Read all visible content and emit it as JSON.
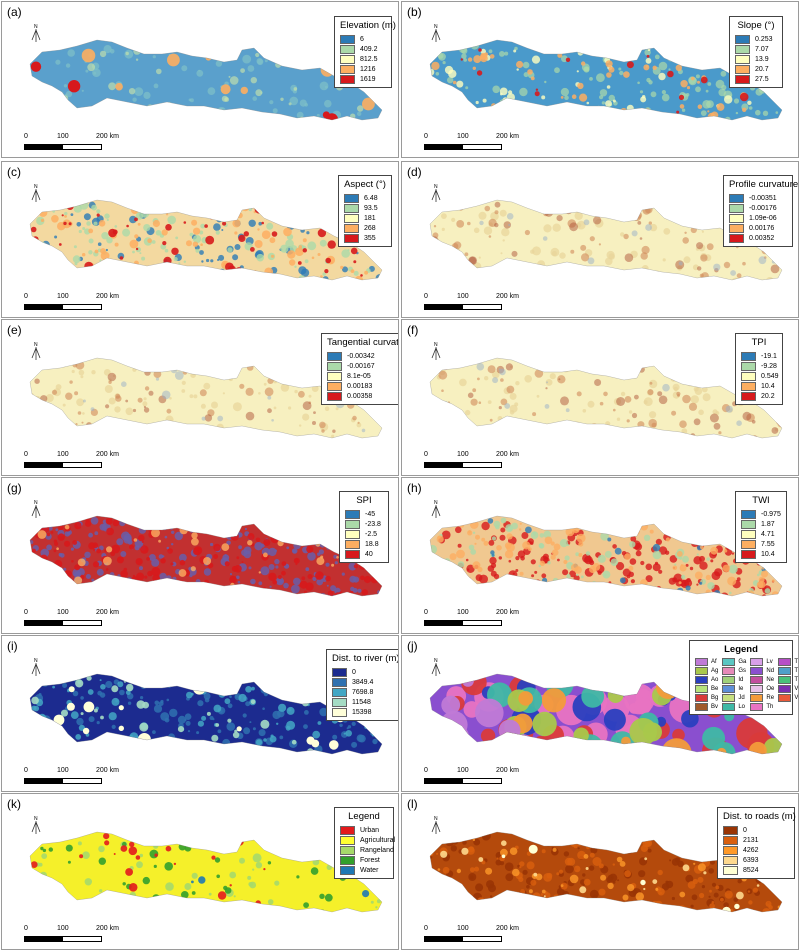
{
  "figure": {
    "panels": [
      {
        "id": "a",
        "label": "(a)",
        "legend_title": "Elevation (m)",
        "palette": "elevation",
        "items": [
          {
            "label": "6",
            "color": "#2c7bb6"
          },
          {
            "label": "409.2",
            "color": "#abd9a9"
          },
          {
            "label": "812.5",
            "color": "#ffffbf"
          },
          {
            "label": "1216",
            "color": "#fdae61"
          },
          {
            "label": "1619",
            "color": "#d7191c"
          }
        ]
      },
      {
        "id": "b",
        "label": "(b)",
        "legend_title": "Slope (°)",
        "palette": "slope",
        "items": [
          {
            "label": "0.253",
            "color": "#2c7bb6"
          },
          {
            "label": "7.07",
            "color": "#abd9a9"
          },
          {
            "label": "13.9",
            "color": "#ffffbf"
          },
          {
            "label": "20.7",
            "color": "#fdae61"
          },
          {
            "label": "27.5",
            "color": "#d7191c"
          }
        ]
      },
      {
        "id": "c",
        "label": "(c)",
        "legend_title": "Aspect (°)",
        "palette": "aspect",
        "items": [
          {
            "label": "6.48",
            "color": "#2c7bb6"
          },
          {
            "label": "93.5",
            "color": "#abd9a9"
          },
          {
            "label": "181",
            "color": "#ffffbf"
          },
          {
            "label": "268",
            "color": "#fdae61"
          },
          {
            "label": "355",
            "color": "#d7191c"
          }
        ]
      },
      {
        "id": "d",
        "label": "(d)",
        "legend_title": "Profile curvature",
        "palette": "curv",
        "items": [
          {
            "label": "-0.00351",
            "color": "#2c7bb6"
          },
          {
            "label": "-0.00176",
            "color": "#abd9a9"
          },
          {
            "label": "1.09e-06",
            "color": "#ffffbf"
          },
          {
            "label": "0.00176",
            "color": "#fdae61"
          },
          {
            "label": "0.00352",
            "color": "#d7191c"
          }
        ]
      },
      {
        "id": "e",
        "label": "(e)",
        "legend_title": "Tangential curvature",
        "palette": "curv",
        "items": [
          {
            "label": "-0.00342",
            "color": "#2c7bb6"
          },
          {
            "label": "-0.00167",
            "color": "#abd9a9"
          },
          {
            "label": "8.1e-05",
            "color": "#ffffbf"
          },
          {
            "label": "0.00183",
            "color": "#fdae61"
          },
          {
            "label": "0.00358",
            "color": "#d7191c"
          }
        ]
      },
      {
        "id": "f",
        "label": "(f)",
        "legend_title": "TPI",
        "palette": "curv",
        "items": [
          {
            "label": "-19.1",
            "color": "#2c7bb6"
          },
          {
            "label": "-9.28",
            "color": "#abd9a9"
          },
          {
            "label": "0.549",
            "color": "#ffffbf"
          },
          {
            "label": "10.4",
            "color": "#fdae61"
          },
          {
            "label": "20.2",
            "color": "#d7191c"
          }
        ]
      },
      {
        "id": "g",
        "label": "(g)",
        "legend_title": "SPI",
        "palette": "spi",
        "items": [
          {
            "label": "-45",
            "color": "#2c7bb6"
          },
          {
            "label": "-23.8",
            "color": "#abd9a9"
          },
          {
            "label": "-2.5",
            "color": "#ffffbf"
          },
          {
            "label": "18.8",
            "color": "#fdae61"
          },
          {
            "label": "40",
            "color": "#d7191c"
          }
        ]
      },
      {
        "id": "h",
        "label": "(h)",
        "legend_title": "TWI",
        "palette": "twi",
        "items": [
          {
            "label": "-0.975",
            "color": "#2c7bb6"
          },
          {
            "label": "1.87",
            "color": "#abd9a9"
          },
          {
            "label": "4.71",
            "color": "#ffffbf"
          },
          {
            "label": "7.55",
            "color": "#fdae61"
          },
          {
            "label": "10.4",
            "color": "#d7191c"
          }
        ]
      },
      {
        "id": "i",
        "label": "(i)",
        "legend_title": "Dist. to river (m)",
        "palette": "river",
        "items": [
          {
            "label": "0",
            "color": "#1c2b8f"
          },
          {
            "label": "3849.4",
            "color": "#2f71b0"
          },
          {
            "label": "7698.8",
            "color": "#43a7c4"
          },
          {
            "label": "11548",
            "color": "#a5dcc4"
          },
          {
            "label": "15398",
            "color": "#ffffd9"
          }
        ]
      },
      {
        "id": "j",
        "label": "(j)",
        "legend_title": "Legend",
        "palette": "geology",
        "geology_items": [
          {
            "label": "Af",
            "color": "#c07ad6"
          },
          {
            "label": "Ga",
            "color": "#5bc6c2"
          },
          {
            "label": "Lv",
            "color": "#d8a0e8"
          },
          {
            "label": "Tm",
            "color": "#b64fc7"
          },
          {
            "label": "Ag",
            "color": "#a9c84b"
          },
          {
            "label": "Gs",
            "color": "#e68ab8"
          },
          {
            "label": "Nd",
            "color": "#8a4fcf"
          },
          {
            "label": "Tu",
            "color": "#4fa0c9"
          },
          {
            "label": "Ao",
            "color": "#2a3fbf"
          },
          {
            "label": "Id",
            "color": "#9fd07a"
          },
          {
            "label": "Ne",
            "color": "#c24f9e"
          },
          {
            "label": "Tv",
            "color": "#49c27a"
          },
          {
            "label": "Be",
            "color": "#b7e37b"
          },
          {
            "label": "Ie",
            "color": "#5e8fd8"
          },
          {
            "label": "Oe",
            "color": "#e8c2e8"
          },
          {
            "label": "Vc",
            "color": "#7c2fb0"
          },
          {
            "label": "Bg",
            "color": "#d93a3a"
          },
          {
            "label": "Jd",
            "color": "#c7e07f"
          },
          {
            "label": "Re",
            "color": "#f39b3a"
          },
          {
            "label": "Vp",
            "color": "#e85a3a"
          },
          {
            "label": "Bv",
            "color": "#a05a2c"
          },
          {
            "label": "Lo",
            "color": "#3fb8a5"
          },
          {
            "label": "Th",
            "color": "#e873c2"
          }
        ]
      },
      {
        "id": "k",
        "label": "(k)",
        "legend_title": "Legend",
        "palette": "landuse",
        "items": [
          {
            "label": "Urban",
            "color": "#e31a1c"
          },
          {
            "label": "Agricultural",
            "color": "#ffff33"
          },
          {
            "label": "Rangeland",
            "color": "#a6d96a"
          },
          {
            "label": "Forest",
            "color": "#33a02c"
          },
          {
            "label": "Water",
            "color": "#1f78b4"
          }
        ]
      },
      {
        "id": "l",
        "label": "(l)",
        "legend_title": "Dist. to roads (m)",
        "palette": "roads",
        "items": [
          {
            "label": "0",
            "color": "#993404"
          },
          {
            "label": "2131",
            "color": "#d95f0e"
          },
          {
            "label": "4262",
            "color": "#fe9929"
          },
          {
            "label": "6393",
            "color": "#fed98e"
          },
          {
            "label": "8524",
            "color": "#ffffd4"
          }
        ]
      }
    ],
    "scale": {
      "tick0": "0",
      "tick1": "100",
      "tick2": "200 km"
    },
    "north_symbol": "N"
  }
}
